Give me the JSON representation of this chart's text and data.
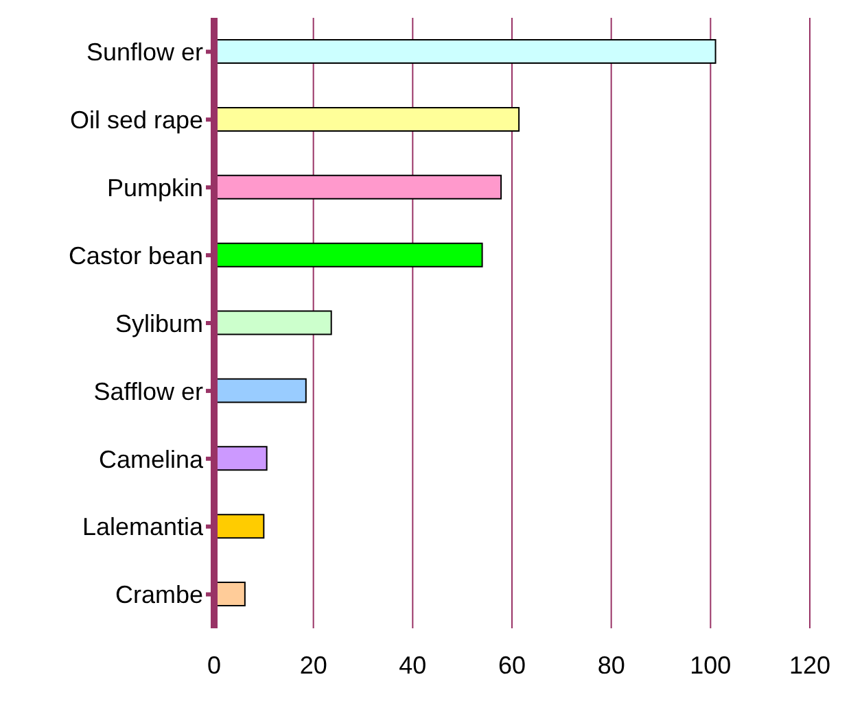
{
  "chart_data": {
    "type": "bar",
    "orientation": "horizontal",
    "categories": [
      "Sunflow er",
      "Oil sed rape",
      "Pumpkin",
      "Castor bean",
      "Sylibum",
      "Safflow er",
      "Camelina",
      "Lalemantia",
      "Crambe"
    ],
    "values": [
      101,
      61.4,
      57.8,
      54,
      23.6,
      18.5,
      10.6,
      10,
      6.2
    ],
    "colors": [
      "#ccffff",
      "#ffff99",
      "#ff99cc",
      "#00ff00",
      "#ccffcc",
      "#99ccff",
      "#cc99ff",
      "#ffcc00",
      "#ffcc99"
    ],
    "xlim": [
      0,
      120
    ],
    "xticks": [
      0,
      20,
      40,
      60,
      80,
      100,
      120
    ],
    "grid": "x"
  }
}
